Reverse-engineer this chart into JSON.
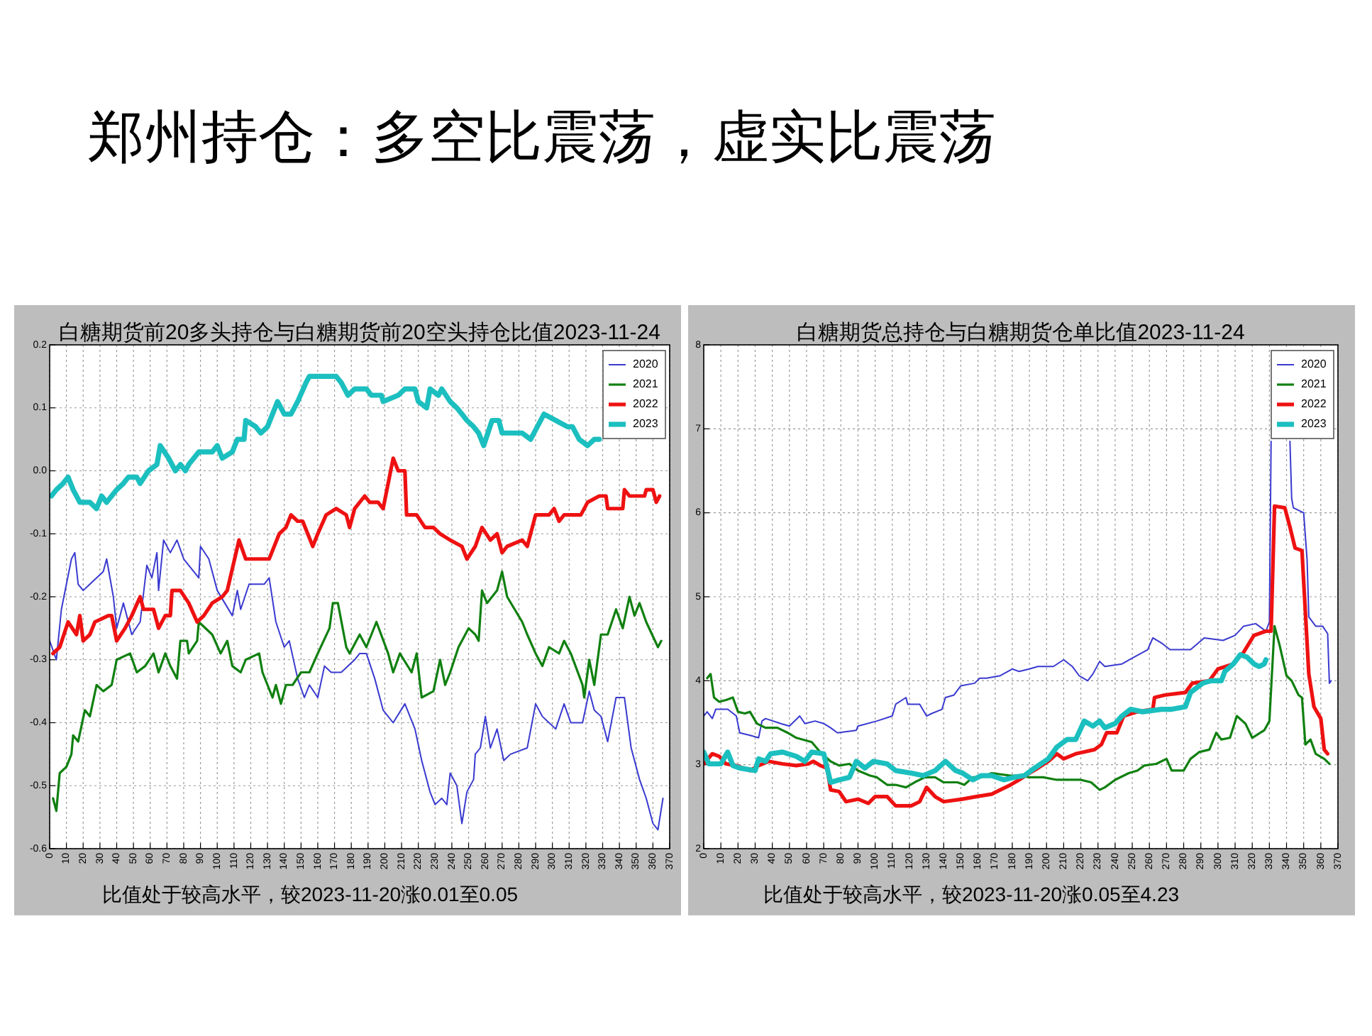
{
  "chart_data": [
    {
      "type": "other",
      "title": "郑州持仓：多空比震荡，虚实比震荡"
    },
    {
      "type": "line",
      "title": "白糖期货前20多头持仓与白糖期货前20空头持仓比值2023-11-24",
      "annotations": [
        "比值处于较高水平，较2023-11-20涨0.01至0.05"
      ],
      "xlim": [
        0,
        370
      ],
      "xticks": [
        0,
        10,
        20,
        30,
        40,
        50,
        60,
        70,
        80,
        90,
        100,
        110,
        120,
        130,
        140,
        150,
        160,
        170,
        180,
        190,
        200,
        210,
        220,
        230,
        240,
        250,
        260,
        270,
        280,
        290,
        300,
        310,
        320,
        330,
        340,
        350,
        360,
        370
      ],
      "ylim": [
        -0.6,
        0.2
      ],
      "yticks": [
        -0.6,
        -0.5,
        -0.4,
        -0.3,
        -0.2,
        -0.1,
        {
          "value": 0,
          "label": "0.0"
        },
        0.1,
        0.2
      ],
      "grid": true,
      "legend": "top right",
      "series": [
        {
          "name": "2020",
          "color": "#3a3ad0",
          "x": [
            0,
            4,
            7,
            13,
            15,
            17,
            20,
            24,
            32,
            34,
            38,
            40,
            44,
            49,
            54,
            58,
            61,
            64,
            65,
            68,
            72,
            76,
            80,
            89,
            90,
            95,
            100,
            109,
            112,
            114,
            119,
            128,
            131,
            135,
            140,
            143,
            148,
            152,
            155,
            160,
            164,
            168,
            174,
            182,
            185,
            189,
            194,
            199,
            205,
            212,
            218,
            222,
            227,
            230,
            234,
            237,
            239,
            243,
            246,
            249,
            253,
            254,
            257,
            260,
            263,
            267,
            271,
            275,
            285,
            290,
            294,
            302,
            307,
            311,
            318,
            322,
            325,
            329,
            333,
            338,
            343,
            347,
            352,
            356,
            360,
            363,
            366
          ],
          "values": [
            -0.27,
            -0.3,
            -0.22,
            -0.14,
            -0.13,
            -0.18,
            -0.19,
            -0.18,
            -0.16,
            -0.14,
            -0.2,
            -0.25,
            -0.21,
            -0.26,
            -0.24,
            -0.15,
            -0.17,
            -0.13,
            -0.19,
            -0.11,
            -0.13,
            -0.11,
            -0.14,
            -0.17,
            -0.12,
            -0.14,
            -0.19,
            -0.23,
            -0.19,
            -0.22,
            -0.18,
            -0.18,
            -0.17,
            -0.24,
            -0.28,
            -0.27,
            -0.33,
            -0.36,
            -0.34,
            -0.36,
            -0.31,
            -0.32,
            -0.32,
            -0.3,
            -0.29,
            -0.29,
            -0.33,
            -0.38,
            -0.4,
            -0.37,
            -0.41,
            -0.46,
            -0.51,
            -0.53,
            -0.52,
            -0.53,
            -0.48,
            -0.5,
            -0.56,
            -0.51,
            -0.49,
            -0.45,
            -0.44,
            -0.39,
            -0.44,
            -0.41,
            -0.46,
            -0.45,
            -0.44,
            -0.37,
            -0.39,
            -0.41,
            -0.37,
            -0.4,
            -0.4,
            -0.35,
            -0.38,
            -0.39,
            -0.43,
            -0.36,
            -0.36,
            -0.44,
            -0.49,
            -0.52,
            -0.56,
            -0.57,
            -0.52
          ]
        },
        {
          "name": "2021",
          "color": "#108010",
          "x": [
            2,
            4,
            6,
            10,
            13,
            14,
            17,
            21,
            24,
            28,
            32,
            37,
            40,
            48,
            52,
            57,
            62,
            65,
            69,
            72,
            76,
            78,
            82,
            83,
            88,
            89,
            97,
            102,
            106,
            109,
            114,
            117,
            125,
            127,
            133,
            135,
            138,
            141,
            145,
            150,
            155,
            160,
            167,
            169,
            172,
            177,
            179,
            185,
            189,
            195,
            202,
            205,
            209,
            216,
            219,
            222,
            229,
            233,
            236,
            239,
            244,
            250,
            254,
            256,
            258,
            261,
            267,
            270,
            273,
            282,
            285,
            290,
            294,
            298,
            304,
            307,
            311,
            318,
            319,
            322,
            325,
            329,
            333,
            338,
            342,
            346,
            349,
            352,
            356,
            363,
            365
          ],
          "values": [
            -0.52,
            -0.54,
            -0.48,
            -0.47,
            -0.45,
            -0.42,
            -0.43,
            -0.38,
            -0.39,
            -0.34,
            -0.35,
            -0.34,
            -0.3,
            -0.29,
            -0.32,
            -0.31,
            -0.29,
            -0.32,
            -0.29,
            -0.31,
            -0.33,
            -0.27,
            -0.27,
            -0.29,
            -0.27,
            -0.24,
            -0.26,
            -0.29,
            -0.27,
            -0.31,
            -0.32,
            -0.3,
            -0.29,
            -0.32,
            -0.36,
            -0.34,
            -0.37,
            -0.34,
            -0.34,
            -0.32,
            -0.32,
            -0.29,
            -0.25,
            -0.21,
            -0.21,
            -0.28,
            -0.29,
            -0.26,
            -0.28,
            -0.24,
            -0.29,
            -0.32,
            -0.29,
            -0.32,
            -0.29,
            -0.36,
            -0.35,
            -0.3,
            -0.34,
            -0.32,
            -0.28,
            -0.25,
            -0.26,
            -0.27,
            -0.19,
            -0.21,
            -0.19,
            -0.16,
            -0.2,
            -0.24,
            -0.26,
            -0.29,
            -0.31,
            -0.28,
            -0.29,
            -0.27,
            -0.29,
            -0.34,
            -0.36,
            -0.3,
            -0.34,
            -0.26,
            -0.26,
            -0.22,
            -0.25,
            -0.2,
            -0.23,
            -0.21,
            -0.24,
            -0.28,
            -0.27
          ]
        },
        {
          "name": "2022",
          "color": "#ee1111",
          "x": [
            2,
            6,
            11,
            16,
            18,
            20,
            24,
            27,
            35,
            37,
            40,
            45,
            49,
            54,
            56,
            62,
            65,
            69,
            72,
            73,
            78,
            83,
            88,
            92,
            97,
            103,
            106,
            113,
            117,
            126,
            131,
            137,
            141,
            144,
            148,
            151,
            157,
            160,
            165,
            171,
            177,
            179,
            182,
            188,
            191,
            196,
            199,
            205,
            208,
            212,
            213,
            219,
            224,
            229,
            233,
            239,
            246,
            249,
            254,
            258,
            263,
            267,
            270,
            273,
            282,
            285,
            290,
            298,
            301,
            304,
            307,
            317,
            321,
            328,
            332,
            333,
            342,
            343,
            346,
            355,
            356,
            360,
            362,
            364
          ],
          "values": [
            -0.29,
            -0.28,
            -0.24,
            -0.26,
            -0.23,
            -0.27,
            -0.26,
            -0.24,
            -0.23,
            -0.23,
            -0.27,
            -0.25,
            -0.23,
            -0.2,
            -0.22,
            -0.22,
            -0.25,
            -0.23,
            -0.23,
            -0.19,
            -0.19,
            -0.21,
            -0.24,
            -0.23,
            -0.21,
            -0.2,
            -0.19,
            -0.11,
            -0.14,
            -0.14,
            -0.14,
            -0.1,
            -0.09,
            -0.07,
            -0.08,
            -0.08,
            -0.12,
            -0.1,
            -0.07,
            -0.06,
            -0.07,
            -0.09,
            -0.06,
            -0.04,
            -0.05,
            -0.05,
            -0.06,
            0.02,
            0,
            0,
            -0.07,
            -0.07,
            -0.09,
            -0.09,
            -0.1,
            -0.11,
            -0.12,
            -0.14,
            -0.12,
            -0.09,
            -0.11,
            -0.1,
            -0.13,
            -0.12,
            -0.11,
            -0.12,
            -0.07,
            -0.07,
            -0.06,
            -0.08,
            -0.07,
            -0.07,
            -0.05,
            -0.04,
            -0.04,
            -0.06,
            -0.06,
            -0.03,
            -0.04,
            -0.04,
            -0.03,
            -0.03,
            -0.05,
            -0.04
          ]
        },
        {
          "name": "2023",
          "color": "#1cbfbf",
          "x": [
            1,
            4,
            8,
            11,
            14,
            18,
            24,
            28,
            31,
            34,
            37,
            40,
            44,
            47,
            52,
            54,
            59,
            64,
            66,
            71,
            75,
            78,
            81,
            83,
            89,
            97,
            100,
            103,
            109,
            112,
            116,
            117,
            123,
            126,
            130,
            133,
            136,
            140,
            144,
            148,
            153,
            155,
            162,
            171,
            174,
            178,
            182,
            189,
            192,
            198,
            199,
            208,
            212,
            218,
            220,
            225,
            227,
            232,
            234,
            239,
            243,
            246,
            249,
            253,
            256,
            259,
            264,
            268,
            270,
            282,
            287,
            291,
            295,
            302,
            309,
            312,
            316,
            321,
            325,
            328
          ],
          "values": [
            -0.04,
            -0.03,
            -0.02,
            -0.01,
            -0.03,
            -0.05,
            -0.05,
            -0.06,
            -0.04,
            -0.05,
            -0.04,
            -0.03,
            -0.02,
            -0.01,
            -0.01,
            -0.02,
            0,
            0.01,
            0.04,
            0.02,
            0,
            0.01,
            0,
            0.01,
            0.03,
            0.03,
            0.04,
            0.02,
            0.03,
            0.05,
            0.05,
            0.08,
            0.07,
            0.06,
            0.07,
            0.09,
            0.11,
            0.09,
            0.09,
            0.11,
            0.14,
            0.15,
            0.15,
            0.15,
            0.14,
            0.12,
            0.13,
            0.13,
            0.12,
            0.12,
            0.11,
            0.12,
            0.13,
            0.13,
            0.11,
            0.1,
            0.13,
            0.12,
            0.13,
            0.11,
            0.1,
            0.09,
            0.08,
            0.07,
            0.06,
            0.04,
            0.08,
            0.08,
            0.06,
            0.06,
            0.05,
            0.07,
            0.09,
            0.08,
            0.07,
            0.07,
            0.05,
            0.04,
            0.05,
            0.05
          ]
        }
      ]
    },
    {
      "type": "line",
      "title": "白糖期货总持仓与白糖期货仓单比值2023-11-24",
      "annotations": [
        "比值处于较高水平，较2023-11-20涨0.05至4.23"
      ],
      "xlim": [
        0,
        370
      ],
      "xticks": [
        0,
        10,
        20,
        30,
        40,
        50,
        60,
        70,
        80,
        90,
        100,
        110,
        120,
        130,
        140,
        150,
        160,
        170,
        180,
        190,
        200,
        210,
        220,
        230,
        240,
        250,
        260,
        270,
        280,
        290,
        300,
        310,
        320,
        330,
        340,
        350,
        360,
        370
      ],
      "ylim": [
        2,
        8
      ],
      "yticks": [
        2,
        3,
        4,
        5,
        6,
        7,
        8
      ],
      "grid": true,
      "legend": "top right",
      "series": [
        {
          "name": "2020",
          "color": "#3a3ad0",
          "x": [
            0,
            2,
            5,
            7,
            14,
            19,
            21,
            27,
            32,
            34,
            36,
            45,
            50,
            56,
            59,
            65,
            70,
            74,
            78,
            89,
            90,
            101,
            110,
            112,
            118,
            119,
            126,
            130,
            133,
            139,
            141,
            146,
            150,
            158,
            161,
            165,
            173,
            180,
            184,
            190,
            195,
            204,
            210,
            215,
            219,
            224,
            227,
            231,
            234,
            244,
            251,
            259,
            262,
            267,
            272,
            284,
            292,
            303,
            310,
            315,
            322,
            328,
            330,
            331
          ],
          "values": [
            3.58,
            3.63,
            3.55,
            3.66,
            3.66,
            3.58,
            3.38,
            3.35,
            3.32,
            3.52,
            3.55,
            3.49,
            3.46,
            3.58,
            3.49,
            3.52,
            3.49,
            3.44,
            3.38,
            3.41,
            3.46,
            3.52,
            3.58,
            3.72,
            3.8,
            3.72,
            3.72,
            3.58,
            3.61,
            3.66,
            3.8,
            3.83,
            3.94,
            3.97,
            4.03,
            4.03,
            4.06,
            4.14,
            4.11,
            4.14,
            4.17,
            4.17,
            4.25,
            4.17,
            4.06,
            4.0,
            4.08,
            4.23,
            4.17,
            4.2,
            4.28,
            4.37,
            4.51,
            4.45,
            4.37,
            4.37,
            4.51,
            4.48,
            4.54,
            4.65,
            4.68,
            4.59,
            4.7,
            6.85
          ]
        },
        {
          "name": "2021",
          "color": "#108010",
          "x": [
            2,
            4,
            6,
            9,
            13,
            17,
            20,
            24,
            27,
            31,
            36,
            43,
            49,
            54,
            63,
            68,
            74,
            79,
            85,
            90,
            97,
            101,
            107,
            112,
            118,
            123,
            129,
            135,
            140,
            148,
            152,
            157,
            162,
            168,
            179,
            184,
            190,
            198,
            206,
            212,
            220,
            226,
            231,
            234,
            240,
            248,
            253,
            257,
            264,
            270,
            273,
            280,
            284,
            289,
            295,
            299,
            302,
            307,
            311,
            316,
            320,
            327,
            330,
            333,
            336,
            340,
            343,
            347,
            349,
            351,
            354,
            357,
            362,
            365
          ],
          "values": [
            4.03,
            4.08,
            3.8,
            3.75,
            3.77,
            3.8,
            3.63,
            3.61,
            3.63,
            3.49,
            3.44,
            3.44,
            3.38,
            3.32,
            3.27,
            3.15,
            3.04,
            2.99,
            3.01,
            2.93,
            2.87,
            2.85,
            2.76,
            2.76,
            2.73,
            2.79,
            2.85,
            2.85,
            2.79,
            2.79,
            2.76,
            2.85,
            2.85,
            2.9,
            2.87,
            2.87,
            2.85,
            2.85,
            2.82,
            2.82,
            2.82,
            2.79,
            2.7,
            2.73,
            2.82,
            2.9,
            2.93,
            2.99,
            3.01,
            3.07,
            2.93,
            2.93,
            3.07,
            3.15,
            3.18,
            3.38,
            3.3,
            3.32,
            3.58,
            3.49,
            3.32,
            3.41,
            3.52,
            4.65,
            4.42,
            4.06,
            4.0,
            3.83,
            3.8,
            3.24,
            3.3,
            3.13,
            3.07,
            3.01
          ]
        },
        {
          "name": "2022",
          "color": "#ee1111",
          "x": [
            0,
            5,
            9,
            13,
            19,
            27,
            32,
            38,
            46,
            54,
            61,
            64,
            68,
            72,
            74,
            79,
            83,
            90,
            96,
            100,
            107,
            112,
            121,
            126,
            130,
            135,
            140,
            151,
            159,
            168,
            173,
            179,
            184,
            190,
            195,
            201,
            206,
            210,
            217,
            228,
            232,
            235,
            241,
            245,
            253,
            262,
            263,
            269,
            281,
            285,
            295,
            300,
            309,
            315,
            321,
            328,
            331,
            333,
            339,
            342,
            345,
            349,
            353,
            356,
            360,
            362,
            364
          ],
          "values": [
            3.01,
            3.13,
            3.1,
            3.01,
            2.99,
            2.93,
            2.99,
            3.04,
            3.01,
            2.99,
            3.01,
            3.04,
            2.99,
            2.96,
            2.7,
            2.68,
            2.56,
            2.59,
            2.54,
            2.62,
            2.62,
            2.51,
            2.51,
            2.56,
            2.73,
            2.62,
            2.56,
            2.59,
            2.62,
            2.65,
            2.7,
            2.76,
            2.82,
            2.9,
            2.96,
            3.04,
            3.13,
            3.07,
            3.13,
            3.18,
            3.24,
            3.38,
            3.38,
            3.58,
            3.63,
            3.66,
            3.8,
            3.83,
            3.86,
            3.97,
            4.0,
            4.14,
            4.2,
            4.34,
            4.54,
            4.59,
            4.59,
            6.08,
            6.06,
            5.83,
            5.58,
            5.55,
            4.08,
            3.69,
            3.55,
            3.18,
            3.13
          ]
        },
        {
          "name": "2023",
          "color": "#1cbfbf",
          "x": [
            0,
            3,
            10,
            14,
            17,
            21,
            30,
            32,
            36,
            39,
            46,
            54,
            59,
            63,
            70,
            74,
            79,
            85,
            89,
            94,
            99,
            107,
            112,
            121,
            128,
            135,
            141,
            147,
            151,
            157,
            162,
            168,
            175,
            181,
            187,
            193,
            201,
            206,
            212,
            217,
            222,
            227,
            231,
            234,
            240,
            244,
            249,
            256,
            267,
            273,
            281,
            284,
            291,
            296,
            302,
            304,
            309,
            313,
            317,
            321,
            324,
            327,
            328
          ],
          "values": [
            3.15,
            3.01,
            3.01,
            3.15,
            2.99,
            2.96,
            2.93,
            3.07,
            3.04,
            3.13,
            3.15,
            3.1,
            3.04,
            3.15,
            3.13,
            2.79,
            2.82,
            2.85,
            3.04,
            2.96,
            3.04,
            3.01,
            2.93,
            2.9,
            2.87,
            2.93,
            3.04,
            2.93,
            2.9,
            2.82,
            2.87,
            2.87,
            2.82,
            2.85,
            2.87,
            2.96,
            3.07,
            3.21,
            3.3,
            3.3,
            3.52,
            3.46,
            3.52,
            3.44,
            3.49,
            3.58,
            3.66,
            3.63,
            3.66,
            3.66,
            3.69,
            3.86,
            3.97,
            4.0,
            4.0,
            4.11,
            4.2,
            4.31,
            4.28,
            4.2,
            4.17,
            4.2,
            4.25
          ]
        },
        {
          "color": "#3a3ad0",
          "x": [
            342,
            343,
            344,
            350,
            352,
            353,
            357,
            361,
            364,
            365,
            366
          ],
          "values": [
            6.85,
            6.17,
            6.06,
            6.0,
            5.44,
            4.76,
            4.65,
            4.65,
            4.56,
            3.97,
            4.0
          ]
        }
      ]
    }
  ]
}
